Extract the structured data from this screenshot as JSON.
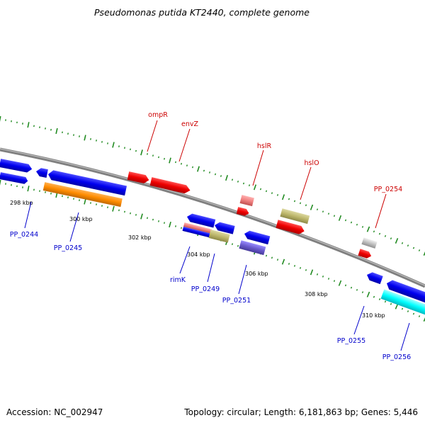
{
  "title": "Pseudomonas putida KT2440, complete genome",
  "footer": {
    "accession": "Accession: NC_002947",
    "topology": "Topology: circular; Length: 6,181,863 bp; Genes: 5,446"
  },
  "colors": {
    "backbone": "#808080",
    "tick": "#228b22",
    "label_forward": "#cc0000",
    "label_reverse": "#0000cc",
    "blue": "#0000ee",
    "red": "#ee0000",
    "pink": "#f08080",
    "khaki": "#bdb76b",
    "orange": "#ff8c00",
    "slate": "#6a5acd",
    "silver": "#c0c0c0",
    "cyan": "#00ffff"
  },
  "kbp_labels": [
    "298 kbp",
    "300 kbp",
    "302 kbp",
    "304 kbp",
    "306 kbp",
    "308 kbp",
    "310 kbp"
  ],
  "gene_labels": {
    "forward": [
      "ompR",
      "envZ",
      "hslR",
      "hslO",
      "PP_0254"
    ],
    "reverse": [
      "PP_0244",
      "PP_0245",
      "rimK",
      "PP_0249",
      "PP_0251",
      "PP_0255",
      "PP_0256"
    ]
  }
}
